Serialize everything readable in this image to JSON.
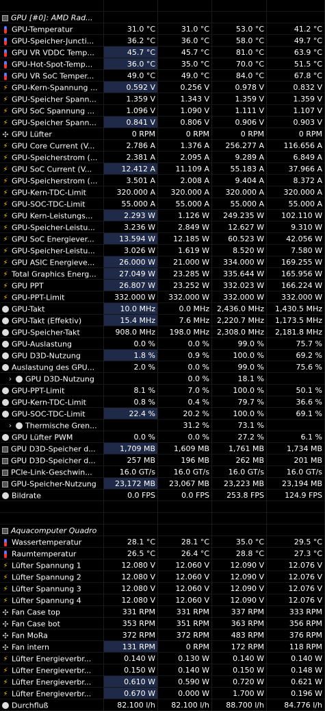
{
  "sections": [
    {
      "title": "GPU [#0]: AMD Rad...",
      "icon": "chip-icon",
      "rows": [
        {
          "label": "GPU-Temperatur",
          "icon": "temp",
          "v": [
            "31.0 °C",
            "31.0 °C",
            "53.0 °C",
            "41.2 °C"
          ],
          "hl": false
        },
        {
          "label": "GPU-Speicher-Juncti...",
          "icon": "temp",
          "v": [
            "36.2 °C",
            "36.0 °C",
            "58.0 °C",
            "49.7 °C"
          ],
          "hl": false
        },
        {
          "label": "GPU VR VDDC Temp...",
          "icon": "temp",
          "v": [
            "45.7 °C",
            "45.7 °C",
            "81.0 °C",
            "63.9 °C"
          ],
          "hl": true
        },
        {
          "label": "GPU-Hot-Spot-Temp...",
          "icon": "temp",
          "v": [
            "36.0 °C",
            "35.0 °C",
            "70.0 °C",
            "51.5 °C"
          ],
          "hl": true
        },
        {
          "label": "GPU VR SoC Temper...",
          "icon": "temp",
          "v": [
            "49.0 °C",
            "49.0 °C",
            "84.0 °C",
            "67.8 °C"
          ],
          "hl": false
        },
        {
          "label": "GPU-Kern-Spannung ...",
          "icon": "bolt",
          "v": [
            "0.592 V",
            "0.256 V",
            "0.978 V",
            "0.832 V"
          ],
          "hl": true
        },
        {
          "label": "GPU-Speicher Spann...",
          "icon": "bolt",
          "v": [
            "1.359 V",
            "1.343 V",
            "1.359 V",
            "1.359 V"
          ],
          "hl": false
        },
        {
          "label": "GPU SoC Spannung ...",
          "icon": "bolt",
          "v": [
            "1.096 V",
            "1.090 V",
            "1.111 V",
            "1.107 V"
          ],
          "hl": false
        },
        {
          "label": "GPU-Speicher Spann...",
          "icon": "bolt",
          "v": [
            "0.841 V",
            "0.806 V",
            "0.906 V",
            "0.903 V"
          ],
          "hl": true
        },
        {
          "label": "GPU Lüfter",
          "icon": "fan",
          "v": [
            "0 RPM",
            "0 RPM",
            "0 RPM",
            "0 RPM"
          ],
          "hl": false
        },
        {
          "label": "GPU Core Current (V...",
          "icon": "bolt",
          "v": [
            "2.786 A",
            "1.376 A",
            "256.277 A",
            "116.656 A"
          ],
          "hl": false
        },
        {
          "label": "GPU-Speicherstrom (...",
          "icon": "bolt",
          "v": [
            "2.381 A",
            "2.095 A",
            "9.289 A",
            "6.849 A"
          ],
          "hl": false
        },
        {
          "label": "GPU SoC Current (V...",
          "icon": "bolt",
          "v": [
            "12.412 A",
            "11.109 A",
            "55.183 A",
            "37.966 A"
          ],
          "hl": true
        },
        {
          "label": "GPU-Speicherstrom (...",
          "icon": "bolt",
          "v": [
            "3.501 A",
            "2.008 A",
            "9.404 A",
            "8.372 A"
          ],
          "hl": false
        },
        {
          "label": "GPU-Kern-TDC-Limit",
          "icon": "bolt",
          "v": [
            "320.000 A",
            "320.000 A",
            "320.000 A",
            "320.000 A"
          ],
          "hl": false
        },
        {
          "label": "GPU-SOC-TDC-Limit",
          "icon": "bolt",
          "v": [
            "55.000 A",
            "55.000 A",
            "55.000 A",
            "55.000 A"
          ],
          "hl": false
        },
        {
          "label": "GPU Kern-Leistungs...",
          "icon": "bolt",
          "v": [
            "2.293 W",
            "1.126 W",
            "249.235 W",
            "102.110 W"
          ],
          "hl": true
        },
        {
          "label": "GPU-Speicher-Leistu...",
          "icon": "bolt",
          "v": [
            "3.236 W",
            "2.849 W",
            "12.627 W",
            "9.310 W"
          ],
          "hl": false
        },
        {
          "label": "GPU SoC Energiever...",
          "icon": "bolt",
          "v": [
            "13.594 W",
            "12.185 W",
            "60.523 W",
            "42.056 W"
          ],
          "hl": true
        },
        {
          "label": "GPU-Speicher-Leistu...",
          "icon": "bolt",
          "v": [
            "3.026 W",
            "1.619 W",
            "8.520 W",
            "7.580 W"
          ],
          "hl": false
        },
        {
          "label": "GPU ASIC Energieve...",
          "icon": "bolt",
          "v": [
            "26.000 W",
            "21.000 W",
            "334.000 W",
            "169.255 W"
          ],
          "hl": true
        },
        {
          "label": "Total Graphics Energ...",
          "icon": "bolt",
          "v": [
            "27.049 W",
            "23.285 W",
            "335.644 W",
            "165.956 W"
          ],
          "hl": true
        },
        {
          "label": "GPU PPT",
          "icon": "bolt",
          "v": [
            "26.807 W",
            "23.252 W",
            "332.023 W",
            "166.224 W"
          ],
          "hl": true
        },
        {
          "label": "GPU-PPT-Limit",
          "icon": "bolt",
          "v": [
            "332.000 W",
            "332.000 W",
            "332.000 W",
            "332.000 W"
          ],
          "hl": false
        },
        {
          "label": "GPU-Takt",
          "icon": "clock",
          "v": [
            "10.0 MHz",
            "0.0 MHz",
            "2,436.0 MHz",
            "1,430.5 MHz"
          ],
          "hl": true
        },
        {
          "label": "GPU-Takt (Effektiv)",
          "icon": "clock",
          "v": [
            "15.4 MHz",
            "7.6 MHz",
            "2,220.7 MHz",
            "1,173.5 MHz"
          ],
          "hl": true
        },
        {
          "label": "GPU-Speicher-Takt",
          "icon": "clock",
          "v": [
            "908.0 MHz",
            "198.0 MHz",
            "2,308.0 MHz",
            "2,181.8 MHz"
          ],
          "hl": false
        },
        {
          "label": "GPU-Auslastung",
          "icon": "clock",
          "v": [
            "0.0 %",
            "0.0 %",
            "99.0 %",
            "75.7 %"
          ],
          "hl": false
        },
        {
          "label": "GPU D3D-Nutzung",
          "icon": "clock",
          "v": [
            "1.8 %",
            "0.9 %",
            "100.0 %",
            "69.2 %"
          ],
          "hl": true
        },
        {
          "label": "Auslastung des GPU...",
          "icon": "clock",
          "v": [
            "2.0 %",
            "0.0 %",
            "99.0 %",
            "75.6 %"
          ],
          "hl": false
        },
        {
          "label": "GPU D3D-Nutzung",
          "icon": "clock",
          "expander": true,
          "v": [
            "",
            "0.0 %",
            "18.1 %",
            ""
          ],
          "hl": false
        },
        {
          "label": "GPU-PPT-Limit",
          "icon": "clock",
          "v": [
            "8.1 %",
            "7.0 %",
            "100.0 %",
            "50.1 %"
          ],
          "hl": false
        },
        {
          "label": "GPU-Kern-TDC-Limit",
          "icon": "clock",
          "v": [
            "0.8 %",
            "0.4 %",
            "79.7 %",
            "36.6 %"
          ],
          "hl": false
        },
        {
          "label": "GPU-SOC-TDC-Limit",
          "icon": "clock",
          "v": [
            "22.4 %",
            "20.2 %",
            "100.0 %",
            "69.1 %"
          ],
          "hl": true
        },
        {
          "label": "Thermische Gren...",
          "icon": "clock",
          "expander": true,
          "v": [
            "",
            "31.2 %",
            "73.1 %",
            ""
          ],
          "hl": false
        },
        {
          "label": "GPU Lüfter PWM",
          "icon": "clock",
          "v": [
            "0.0 %",
            "0.0 %",
            "27.2 %",
            "6.1 %"
          ],
          "hl": false
        },
        {
          "label": "GPU D3D-Speicher d...",
          "icon": "chip",
          "v": [
            "1,709 MB",
            "1,609 MB",
            "1,761 MB",
            "1,734 MB"
          ],
          "hl": true
        },
        {
          "label": "GPU D3D-Speicher d...",
          "icon": "chip",
          "v": [
            "257 MB",
            "196 MB",
            "262 MB",
            "201 MB"
          ],
          "hl": false
        },
        {
          "label": "PCIe-Link-Geschwin...",
          "icon": "chip",
          "v": [
            "16.0 GT/s",
            "16.0 GT/s",
            "16.0 GT/s",
            "16.0 GT/s"
          ],
          "hl": false
        },
        {
          "label": "GPU-Speicher-Nutzung",
          "icon": "chip",
          "v": [
            "23,172 MB",
            "23,067 MB",
            "23,223 MB",
            "23,194 MB"
          ],
          "hl": true
        },
        {
          "label": "Bildrate",
          "icon": "clock",
          "v": [
            "0.0 FPS",
            "0.0 FPS",
            "253.8 FPS",
            "124.9 FPS"
          ],
          "hl": false
        }
      ]
    },
    {
      "title": "Aquacomputer Quadro",
      "icon": "chip-icon",
      "rows": [
        {
          "label": "Wassertemperatur",
          "icon": "temp",
          "v": [
            "28.1 °C",
            "28.1 °C",
            "35.0 °C",
            "29.5 °C"
          ],
          "hl": false
        },
        {
          "label": "Raumtemperatur",
          "icon": "temp",
          "v": [
            "26.5 °C",
            "26.4 °C",
            "28.8 °C",
            "27.3 °C"
          ],
          "hl": false
        },
        {
          "label": "Lüfter Spannung 1",
          "icon": "bolt",
          "v": [
            "12.080 V",
            "12.060 V",
            "12.090 V",
            "12.076 V"
          ],
          "hl": false
        },
        {
          "label": "Lüfter Spannung 2",
          "icon": "bolt",
          "v": [
            "12.080 V",
            "12.060 V",
            "12.090 V",
            "12.076 V"
          ],
          "hl": false
        },
        {
          "label": "Lüfter Spannung 3",
          "icon": "bolt",
          "v": [
            "12.080 V",
            "12.060 V",
            "12.090 V",
            "12.076 V"
          ],
          "hl": false
        },
        {
          "label": "Lüfter Spannung 4",
          "icon": "bolt",
          "v": [
            "12.080 V",
            "12.060 V",
            "12.090 V",
            "12.076 V"
          ],
          "hl": false
        },
        {
          "label": "Fan Case top",
          "icon": "fan",
          "v": [
            "331 RPM",
            "331 RPM",
            "337 RPM",
            "333 RPM"
          ],
          "hl": false
        },
        {
          "label": "Fan Case bot",
          "icon": "fan",
          "v": [
            "353 RPM",
            "351 RPM",
            "363 RPM",
            "356 RPM"
          ],
          "hl": false
        },
        {
          "label": "Fan MoRa",
          "icon": "fan",
          "v": [
            "372 RPM",
            "372 RPM",
            "483 RPM",
            "376 RPM"
          ],
          "hl": false
        },
        {
          "label": "Fan intern",
          "icon": "fan",
          "v": [
            "131 RPM",
            "0 RPM",
            "172 RPM",
            "118 RPM"
          ],
          "hl": true
        },
        {
          "label": "Lüfter Energieverbr...",
          "icon": "bolt",
          "v": [
            "0.140 W",
            "0.130 W",
            "0.140 W",
            "0.140 W"
          ],
          "hl": false
        },
        {
          "label": "Lüfter Energieverbr...",
          "icon": "bolt",
          "v": [
            "0.150 W",
            "0.140 W",
            "0.150 W",
            "0.148 W"
          ],
          "hl": false
        },
        {
          "label": "Lüfter Energieverbr...",
          "icon": "bolt",
          "v": [
            "0.610 W",
            "0.590 W",
            "0.720 W",
            "0.621 W"
          ],
          "hl": true
        },
        {
          "label": "Lüfter Energieverbr...",
          "icon": "bolt",
          "v": [
            "0.670 W",
            "0.000 W",
            "1.700 W",
            "0.196 W"
          ],
          "hl": true
        },
        {
          "label": "Durchfluß",
          "icon": "clock",
          "v": [
            "82.100 l/h",
            "82.100 l/h",
            "88.700 l/h",
            "84.776 l/h"
          ],
          "hl": false
        }
      ]
    }
  ]
}
